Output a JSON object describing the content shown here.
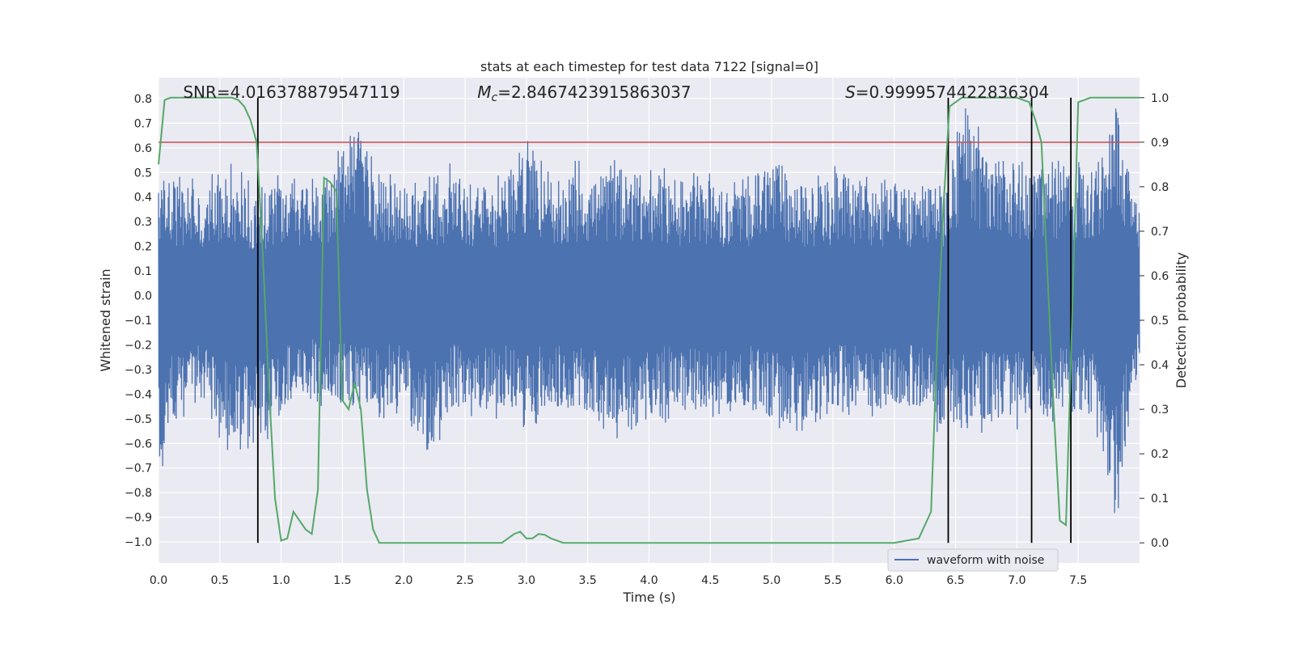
{
  "chart_data": {
    "type": "line",
    "title": "stats at each timestep for test data 7122 [signal=0]",
    "xlabel": "Time (s)",
    "ylabel": "Whitened strain",
    "ylabel_right": "Detection probability",
    "xlim": [
      0.0,
      8.0
    ],
    "ylim": [
      -1.085,
      0.885
    ],
    "ylim_right": [
      -0.045,
      1.045
    ],
    "x_ticks": [
      0.0,
      0.5,
      1.0,
      1.5,
      2.0,
      2.5,
      3.0,
      3.5,
      4.0,
      4.5,
      5.0,
      5.5,
      6.0,
      6.5,
      7.0,
      7.5
    ],
    "x_tick_labels": [
      "0.0",
      "0.5",
      "1.0",
      "1.5",
      "2.0",
      "2.5",
      "3.0",
      "3.5",
      "4.0",
      "4.5",
      "5.0",
      "5.5",
      "6.0",
      "6.5",
      "7.0",
      "7.5"
    ],
    "y_ticks": [
      0.8,
      0.7,
      0.6,
      0.5,
      0.4,
      0.3,
      0.2,
      0.1,
      0.0,
      -0.1,
      -0.2,
      -0.3,
      -0.4,
      -0.5,
      -0.6,
      -0.7,
      -0.8,
      -0.9,
      -1.0
    ],
    "y_tick_labels": [
      "0.8",
      "0.7",
      "0.6",
      "0.5",
      "0.4",
      "0.3",
      "0.2",
      "0.1",
      "0.0",
      "−0.1",
      "−0.2",
      "−0.3",
      "−0.4",
      "−0.5",
      "−0.6",
      "−0.7",
      "−0.8",
      "−0.9",
      "−1.0"
    ],
    "y_right_ticks": [
      1.0,
      0.9,
      0.8,
      0.7,
      0.6,
      0.5,
      0.4,
      0.3,
      0.2,
      0.1,
      0.0
    ],
    "y_right_tick_labels": [
      "1.0",
      "0.9",
      "0.8",
      "0.7",
      "0.6",
      "0.5",
      "0.4",
      "0.3",
      "0.2",
      "0.1",
      "0.0"
    ],
    "grid": true,
    "legend_position": "lower-right",
    "annotations": [
      {
        "text": "SNR=4.016378879547119",
        "x": 0.2,
        "y": 0.82
      },
      {
        "text": "M_c=2.8467423915863037",
        "x": 2.6,
        "y": 0.82
      },
      {
        "text": "S=0.9999574422836304",
        "x": 5.6,
        "y": 0.82
      }
    ],
    "series": [
      {
        "name": "waveform with noise",
        "axis": "left",
        "color": "#4c72b0",
        "envelope_x": [
          0.0,
          0.2,
          0.4,
          0.6,
          0.8,
          1.0,
          1.2,
          1.4,
          1.6,
          1.8,
          2.0,
          2.2,
          2.4,
          2.6,
          2.8,
          3.0,
          3.2,
          3.4,
          3.6,
          3.8,
          4.0,
          4.2,
          4.4,
          4.6,
          4.8,
          5.0,
          5.2,
          5.4,
          5.6,
          5.8,
          6.0,
          6.2,
          6.4,
          6.6,
          6.8,
          7.0,
          7.2,
          7.4,
          7.6,
          7.8,
          8.0
        ],
        "envelope_max": [
          0.55,
          0.5,
          0.5,
          0.55,
          0.45,
          0.5,
          0.5,
          0.5,
          0.8,
          0.5,
          0.5,
          0.5,
          0.55,
          0.5,
          0.5,
          0.65,
          0.5,
          0.55,
          0.55,
          0.55,
          0.55,
          0.5,
          0.5,
          0.5,
          0.5,
          0.63,
          0.5,
          0.5,
          0.55,
          0.5,
          0.5,
          0.5,
          0.5,
          0.8,
          0.55,
          0.55,
          0.55,
          0.55,
          0.55,
          0.78,
          0.4
        ],
        "envelope_min": [
          -0.75,
          -0.5,
          -0.5,
          -0.7,
          -0.67,
          -0.5,
          -0.45,
          -0.45,
          -0.5,
          -0.5,
          -0.5,
          -0.73,
          -0.5,
          -0.5,
          -0.5,
          -0.55,
          -0.5,
          -0.5,
          -0.55,
          -0.62,
          -0.55,
          -0.5,
          -0.5,
          -0.5,
          -0.5,
          -0.55,
          -0.6,
          -0.5,
          -0.5,
          -0.5,
          -0.5,
          -0.5,
          -0.6,
          -0.6,
          -0.55,
          -0.55,
          -0.55,
          -0.5,
          -0.55,
          -1.0,
          -0.3
        ]
      },
      {
        "name": "",
        "axis": "right",
        "color": "#55a868",
        "x": [
          0.0,
          0.05,
          0.1,
          0.2,
          0.3,
          0.4,
          0.5,
          0.6,
          0.65,
          0.7,
          0.75,
          0.8,
          0.85,
          0.9,
          0.95,
          1.0,
          1.05,
          1.1,
          1.15,
          1.2,
          1.25,
          1.3,
          1.35,
          1.4,
          1.45,
          1.5,
          1.55,
          1.6,
          1.65,
          1.7,
          1.75,
          1.8,
          1.85,
          2.0,
          2.5,
          2.8,
          2.9,
          2.95,
          3.0,
          3.05,
          3.1,
          3.15,
          3.2,
          3.3,
          3.4,
          3.6,
          3.7,
          3.8,
          3.9,
          4.0,
          4.5,
          5.0,
          5.5,
          6.0,
          6.2,
          6.3,
          6.35,
          6.4,
          6.45,
          6.5,
          6.55,
          6.6,
          6.7,
          6.8,
          7.0,
          7.1,
          7.15,
          7.2,
          7.25,
          7.3,
          7.35,
          7.4,
          7.45,
          7.5,
          7.6,
          7.7,
          8.0
        ],
        "y": [
          0.85,
          0.995,
          1.0,
          1.0,
          1.0,
          1.0,
          1.0,
          1.0,
          0.995,
          0.98,
          0.95,
          0.9,
          0.65,
          0.35,
          0.1,
          0.005,
          0.01,
          0.07,
          0.05,
          0.03,
          0.02,
          0.12,
          0.82,
          0.81,
          0.79,
          0.32,
          0.3,
          0.36,
          0.3,
          0.12,
          0.03,
          0.0,
          0.0,
          0.0,
          0.0,
          0.0,
          0.02,
          0.025,
          0.01,
          0.01,
          0.02,
          0.018,
          0.01,
          0.0,
          0.0,
          0.0,
          0.0,
          0.0,
          0.0,
          0.0,
          0.0,
          0.0,
          0.0,
          0.0,
          0.01,
          0.07,
          0.45,
          0.75,
          0.98,
          0.99,
          1.0,
          1.0,
          1.0,
          1.0,
          1.0,
          0.99,
          0.95,
          0.9,
          0.6,
          0.3,
          0.05,
          0.04,
          0.5,
          0.99,
          1.0,
          1.0,
          1.0
        ]
      }
    ],
    "hlines": [
      {
        "axis": "right",
        "y": 0.9,
        "color": "#c44e52"
      }
    ],
    "vlines": [
      {
        "x": 0.81,
        "color": "#000000"
      },
      {
        "x": 6.44,
        "color": "#000000"
      },
      {
        "x": 7.12,
        "color": "#000000"
      },
      {
        "x": 7.44,
        "color": "#000000"
      }
    ],
    "legend": [
      {
        "label": "waveform with noise",
        "color": "#4c72b0"
      }
    ]
  }
}
